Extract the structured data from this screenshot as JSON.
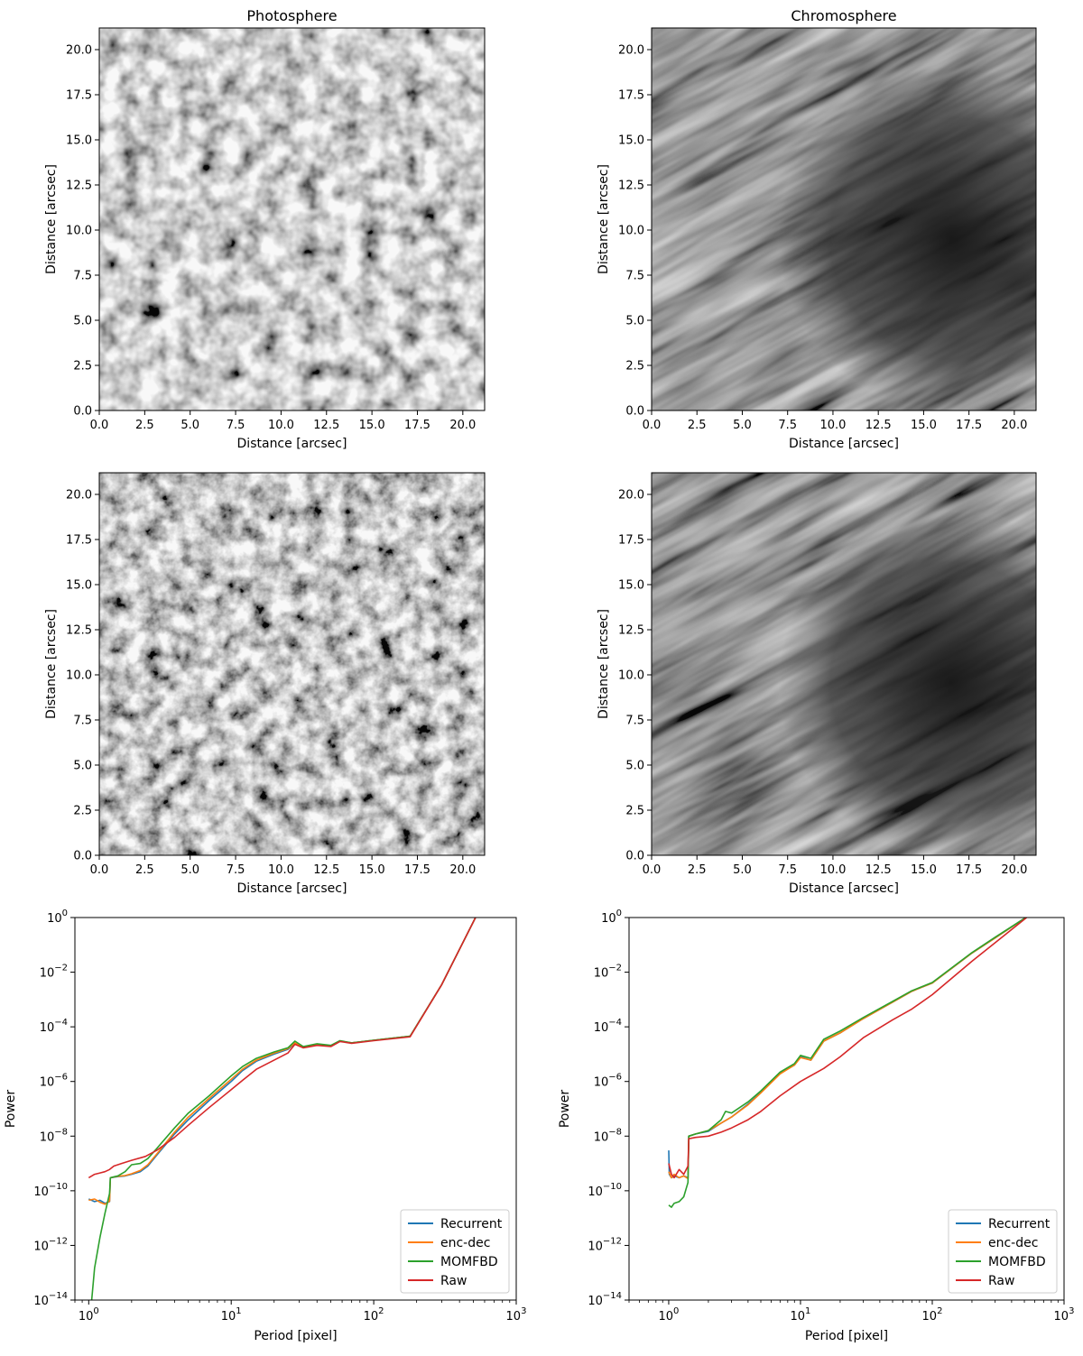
{
  "colors": {
    "Recurrent": "#1f77b4",
    "enc-dec": "#ff7f0e",
    "MOMFBD": "#2ca02c",
    "Raw": "#d62728"
  },
  "chart_data": [
    {
      "type": "heatmap",
      "panel": "top-left",
      "title": "Photosphere",
      "xlabel": "Distance [arcsec]",
      "ylabel": "Distance [arcsec]",
      "xlim": [
        0,
        21.2
      ],
      "ylim": [
        0,
        21.2
      ],
      "xticks": [
        0.0,
        2.5,
        5.0,
        7.5,
        10.0,
        12.5,
        15.0,
        17.5,
        20.0
      ],
      "yticks": [
        0.0,
        2.5,
        5.0,
        7.5,
        10.0,
        12.5,
        15.0,
        17.5,
        20.0
      ],
      "colormap": "gray",
      "content": "granulation pattern (raw frame)"
    },
    {
      "type": "heatmap",
      "panel": "top-right",
      "title": "Chromosphere",
      "xlabel": "Distance [arcsec]",
      "ylabel": "Distance [arcsec]",
      "xlim": [
        0,
        21.2
      ],
      "ylim": [
        0,
        21.2
      ],
      "xticks": [
        0.0,
        2.5,
        5.0,
        7.5,
        10.0,
        12.5,
        15.0,
        17.5,
        20.0
      ],
      "yticks": [
        0.0,
        2.5,
        5.0,
        7.5,
        10.0,
        12.5,
        15.0,
        17.5,
        20.0
      ],
      "colormap": "gray",
      "content": "chromospheric fibrils (raw frame)"
    },
    {
      "type": "heatmap",
      "panel": "middle-left",
      "title": "",
      "xlabel": "Distance [arcsec]",
      "ylabel": "Distance [arcsec]",
      "xlim": [
        0,
        21.2
      ],
      "ylim": [
        0,
        21.2
      ],
      "xticks": [
        0.0,
        2.5,
        5.0,
        7.5,
        10.0,
        12.5,
        15.0,
        17.5,
        20.0
      ],
      "yticks": [
        0.0,
        2.5,
        5.0,
        7.5,
        10.0,
        12.5,
        15.0,
        17.5,
        20.0
      ],
      "colormap": "gray",
      "content": "granulation pattern (reconstructed)"
    },
    {
      "type": "heatmap",
      "panel": "middle-right",
      "title": "",
      "xlabel": "Distance [arcsec]",
      "ylabel": "Distance [arcsec]",
      "xlim": [
        0,
        21.2
      ],
      "ylim": [
        0,
        21.2
      ],
      "xticks": [
        0.0,
        2.5,
        5.0,
        7.5,
        10.0,
        12.5,
        15.0,
        17.5,
        20.0
      ],
      "yticks": [
        0.0,
        2.5,
        5.0,
        7.5,
        10.0,
        12.5,
        15.0,
        17.5,
        20.0
      ],
      "colormap": "gray",
      "content": "chromospheric fibrils (reconstructed)"
    },
    {
      "type": "line",
      "panel": "bottom-left",
      "title": "",
      "xlabel": "Period [pixel]",
      "ylabel": "Power",
      "xscale": "log",
      "yscale": "log",
      "xlim": [
        0.8,
        1000
      ],
      "ylim": [
        1e-14,
        1
      ],
      "xticks": [
        1,
        10,
        100,
        1000
      ],
      "xtick_labels": [
        [
          "10",
          "0"
        ],
        [
          "10",
          "1"
        ],
        [
          "10",
          "2"
        ],
        [
          "10",
          "3"
        ]
      ],
      "yticks": [
        1e-14,
        1e-12,
        1e-10,
        1e-08,
        1e-06,
        0.0001,
        0.01,
        1
      ],
      "ytick_labels": [
        [
          "10",
          "−14"
        ],
        [
          "10",
          "−12"
        ],
        [
          "10",
          "−10"
        ],
        [
          "10",
          "−8"
        ],
        [
          "10",
          "−6"
        ],
        [
          "10",
          "−4"
        ],
        [
          "10",
          "−2"
        ],
        [
          "10",
          "0"
        ]
      ],
      "legend": "bottom-right",
      "series": [
        {
          "name": "Recurrent",
          "x": [
            1.0,
            1.1,
            1.2,
            1.3,
            1.4,
            1.42,
            1.6,
            1.8,
            2.0,
            2.3,
            2.6,
            3.0,
            4.0,
            5.0,
            7.0,
            10,
            12,
            15,
            20,
            25,
            28,
            32,
            40,
            50,
            58,
            70,
            100,
            180,
            300,
            520
          ],
          "y": [
            5e-11,
            4e-11,
            4.5e-11,
            3.5e-11,
            4e-11,
            3e-10,
            3.3e-10,
            3.5e-10,
            4e-10,
            5e-10,
            8e-10,
            2e-09,
            1.2e-08,
            4e-08,
            2e-07,
            1e-06,
            2.5e-06,
            5.5e-06,
            1e-05,
            1.5e-05,
            2.5e-05,
            1.8e-05,
            2.2e-05,
            2e-05,
            3e-05,
            2.6e-05,
            3.2e-05,
            4.5e-05,
            0.0035,
            1.05
          ]
        },
        {
          "name": "enc-dec",
          "x": [
            1.0,
            1.1,
            1.2,
            1.3,
            1.4,
            1.42,
            1.6,
            1.8,
            2.0,
            2.3,
            2.6,
            3.0,
            4.0,
            5.0,
            7.0,
            10,
            12,
            15,
            20,
            25,
            28,
            32,
            40,
            50,
            58,
            70,
            100,
            180,
            300,
            520
          ],
          "y": [
            4.5e-11,
            5e-11,
            3.8e-11,
            3.2e-11,
            4.2e-11,
            3e-10,
            3.4e-10,
            3.6e-10,
            4.2e-10,
            5.5e-10,
            9e-10,
            2.2e-09,
            1.4e-08,
            5e-08,
            2.4e-07,
            1.2e-06,
            2.8e-06,
            6e-06,
            1.1e-05,
            1.6e-05,
            2.6e-05,
            1.8e-05,
            2.2e-05,
            2e-05,
            3e-05,
            2.6e-05,
            3.2e-05,
            4.5e-05,
            0.0035,
            1.05
          ]
        },
        {
          "name": "MOMFBD",
          "x": [
            1.05,
            1.1,
            1.2,
            1.3,
            1.4,
            1.42,
            1.6,
            1.8,
            2.0,
            2.3,
            2.6,
            3.0,
            4.0,
            5.0,
            7.0,
            10,
            12,
            15,
            20,
            25,
            28,
            32,
            40,
            50,
            58,
            70,
            100,
            180,
            300,
            520
          ],
          "y": [
            1e-14,
            1.5e-13,
            2e-12,
            1.5e-11,
            8e-11,
            3e-10,
            3.5e-10,
            5e-10,
            9e-10,
            1e-09,
            1.5e-09,
            3.5e-09,
            2e-08,
            7e-08,
            3e-07,
            1.6e-06,
            3.5e-06,
            7e-06,
            1.2e-05,
            1.7e-05,
            3e-05,
            1.9e-05,
            2.4e-05,
            2.1e-05,
            3.1e-05,
            2.6e-05,
            3.2e-05,
            4.5e-05,
            0.0035,
            1.05
          ]
        },
        {
          "name": "Raw",
          "x": [
            1.0,
            1.1,
            1.2,
            1.3,
            1.4,
            1.5,
            1.7,
            2.0,
            2.5,
            3.0,
            4.0,
            5.0,
            7.0,
            10,
            12,
            15,
            20,
            25,
            28,
            32,
            40,
            50,
            58,
            70,
            100,
            180,
            300,
            520
          ],
          "y": [
            3e-10,
            4e-10,
            4.5e-10,
            5e-10,
            6e-10,
            8e-10,
            1e-09,
            1.3e-09,
            1.8e-09,
            3e-09,
            9e-09,
            2.5e-08,
            1.1e-07,
            5e-07,
            1.1e-06,
            2.8e-06,
            6e-06,
            1.1e-05,
            2.3e-05,
            1.7e-05,
            2.1e-05,
            1.9e-05,
            2.9e-05,
            2.5e-05,
            3.1e-05,
            4.3e-05,
            0.0035,
            1.05
          ]
        }
      ]
    },
    {
      "type": "line",
      "panel": "bottom-right",
      "title": "",
      "xlabel": "Period [pixel]",
      "ylabel": "Power",
      "xscale": "log",
      "yscale": "log",
      "xlim": [
        0.5,
        1000
      ],
      "ylim": [
        1e-14,
        1
      ],
      "xticks": [
        1,
        10,
        100,
        1000
      ],
      "xtick_labels": [
        [
          "10",
          "0"
        ],
        [
          "10",
          "1"
        ],
        [
          "10",
          "2"
        ],
        [
          "10",
          "3"
        ]
      ],
      "yticks": [
        1e-14,
        1e-12,
        1e-10,
        1e-08,
        1e-06,
        0.0001,
        0.01,
        1
      ],
      "ytick_labels": [
        [
          "10",
          "−14"
        ],
        [
          "10",
          "−12"
        ],
        [
          "10",
          "−10"
        ],
        [
          "10",
          "−8"
        ],
        [
          "10",
          "−6"
        ],
        [
          "10",
          "−4"
        ],
        [
          "10",
          "−2"
        ],
        [
          "10",
          "0"
        ]
      ],
      "legend": "bottom-right",
      "series": [
        {
          "name": "Recurrent",
          "x": [
            1.0,
            1.01,
            1.05,
            1.1,
            1.2,
            1.3,
            1.4,
            1.42,
            1.6,
            2.0,
            2.5,
            3.0,
            4.0,
            5.0,
            7.0,
            9.0,
            10,
            12,
            15,
            20,
            30,
            50,
            70,
            100,
            200,
            300,
            520
          ],
          "y": [
            3e-09,
            4e-10,
            3e-10,
            3.5e-10,
            3e-10,
            3.5e-10,
            3e-10,
            1e-08,
            1.2e-08,
            1.5e-08,
            3e-08,
            5e-08,
            1.5e-07,
            4e-07,
            2e-06,
            4e-06,
            8e-06,
            6e-06,
            3e-05,
            6e-05,
            0.0002,
            0.0008,
            0.002,
            0.004,
            0.05,
            0.18,
            1.05
          ]
        },
        {
          "name": "enc-dec",
          "x": [
            1.0,
            1.05,
            1.1,
            1.2,
            1.3,
            1.4,
            1.42,
            1.6,
            2.0,
            2.5,
            3.0,
            4.0,
            5.0,
            7.0,
            9.0,
            10,
            12,
            15,
            20,
            30,
            50,
            70,
            100,
            200,
            300,
            520
          ],
          "y": [
            5e-10,
            3e-10,
            4e-10,
            3e-10,
            3.5e-10,
            2.8e-10,
            1e-08,
            1.2e-08,
            1.6e-08,
            3e-08,
            5e-08,
            1.4e-07,
            3.8e-07,
            1.9e-06,
            4e-06,
            7.5e-06,
            6e-06,
            3e-05,
            6e-05,
            0.0002,
            0.0008,
            0.002,
            0.004,
            0.05,
            0.18,
            1.05
          ]
        },
        {
          "name": "MOMFBD",
          "x": [
            1.0,
            1.05,
            1.1,
            1.2,
            1.3,
            1.4,
            1.42,
            1.6,
            2.0,
            2.5,
            2.7,
            3.0,
            4.0,
            5.0,
            7.0,
            9.0,
            10,
            12,
            15,
            20,
            30,
            50,
            70,
            100,
            200,
            300,
            520
          ],
          "y": [
            3e-11,
            2.5e-11,
            3.5e-11,
            4e-11,
            6e-11,
            2e-10,
            1e-08,
            1.2e-08,
            1.6e-08,
            4e-08,
            8e-08,
            7e-08,
            1.8e-07,
            4.5e-07,
            2.2e-06,
            4.5e-06,
            9e-06,
            7e-06,
            3.5e-05,
            7e-05,
            0.00022,
            0.00085,
            0.0021,
            0.0042,
            0.052,
            0.19,
            1.05
          ]
        },
        {
          "name": "Raw",
          "x": [
            1.0,
            1.05,
            1.1,
            1.2,
            1.3,
            1.4,
            1.42,
            1.6,
            2.0,
            2.5,
            3.0,
            4.0,
            5.0,
            7.0,
            10,
            15,
            20,
            30,
            50,
            70,
            100,
            200,
            300,
            520
          ],
          "y": [
            1e-09,
            4e-10,
            3e-10,
            6e-10,
            4e-10,
            8e-10,
            8e-09,
            9e-09,
            1e-08,
            1.4e-08,
            2e-08,
            4e-08,
            8e-08,
            3e-07,
            1e-06,
            3e-06,
            8e-06,
            4e-05,
            0.00018,
            0.00045,
            0.0015,
            0.025,
            0.12,
            1.0
          ]
        }
      ]
    }
  ]
}
